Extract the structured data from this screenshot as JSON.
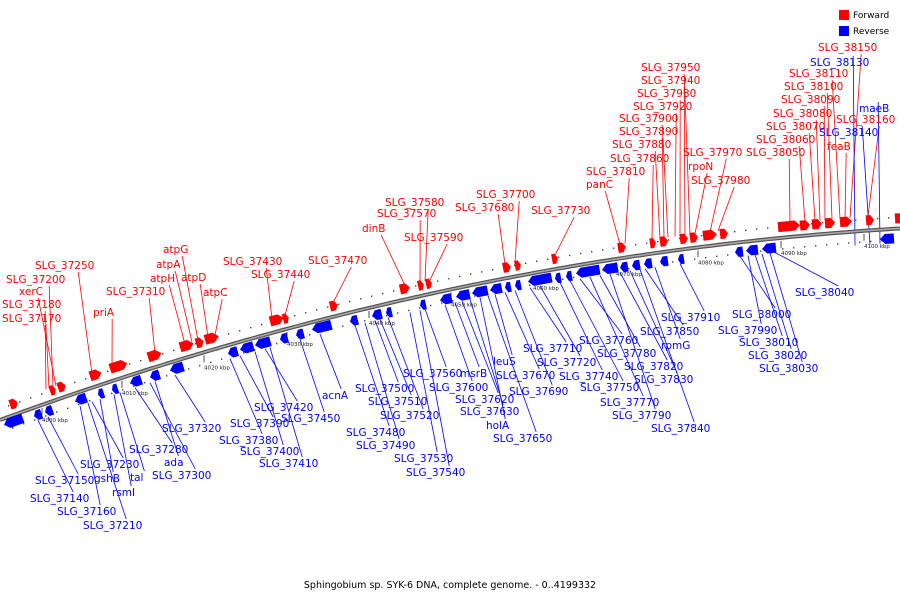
{
  "legend": {
    "forward": {
      "label": "Forward",
      "color": "#ff0000"
    },
    "reverse": {
      "label": "Reverse",
      "color": "#0000ff"
    }
  },
  "caption": "Sphingobium sp. SYK-6 DNA, complete genome. - 0..4199332",
  "ticks": [
    "4000 kbp",
    "4010 kbp",
    "4020 kbp",
    "4030 kbp",
    "4040 kbp",
    "4050 kbp",
    "4060 kbp",
    "4070 kbp",
    "4080 kbp",
    "4090 kbp",
    "4100 kbp"
  ],
  "forward_labels": [
    "SLG_37170",
    "SLG_37180",
    "SLG_37200",
    "xerC",
    "SLG_37250",
    "priA",
    "SLG_37310",
    "atpH",
    "atpA",
    "atpG",
    "atpD",
    "atpC",
    "SLG_37430",
    "SLG_37440",
    "SLG_37470",
    "dinB",
    "SLG_37570",
    "SLG_37580",
    "SLG_37590",
    "SLG_37680",
    "SLG_37700",
    "SLG_37730",
    "panC",
    "SLG_37810",
    "SLG_37860",
    "SLG_37880",
    "SLG_37890",
    "SLG_37900",
    "SLG_37920",
    "SLG_37930",
    "SLG_37940",
    "SLG_37950",
    "rpoN",
    "SLG_37970",
    "SLG_37980",
    "SLG_38050",
    "SLG_38060",
    "SLG_38070",
    "SLG_38080",
    "SLG_38090",
    "SLG_38100",
    "SLG_38110",
    "SLG_38150",
    "feaB",
    "SLG_38160"
  ],
  "reverse_labels": [
    "SLG_37140",
    "SLG_37150",
    "SLG_37160",
    "SLG_37210",
    "gshB",
    "SLG_37230",
    "rsmI",
    "tal",
    "SLG_37280",
    "ada",
    "SLG_37300",
    "SLG_37320",
    "SLG_37380",
    "SLG_37390",
    "SLG_37400",
    "SLG_37410",
    "SLG_37420",
    "SLG_37450",
    "acnA",
    "SLG_37480",
    "SLG_37490",
    "SLG_37500",
    "SLG_37510",
    "SLG_37520",
    "SLG_37530",
    "SLG_37540",
    "SLG_37560",
    "SLG_37600",
    "msrB",
    "SLG_37620",
    "SLG_37630",
    "holA",
    "SLG_37650",
    "leuS",
    "SLG_37670",
    "SLG_37690",
    "SLG_37710",
    "SLG_37720",
    "SLG_37740",
    "SLG_37750",
    "SLG_37760",
    "SLG_37770",
    "SLG_37780",
    "SLG_37790",
    "SLG_37820",
    "SLG_37830",
    "SLG_37840",
    "SLG_37850",
    "rpmG",
    "SLG_37910",
    "SLG_38000",
    "SLG_37990",
    "SLG_38010",
    "SLG_38020",
    "SLG_38030",
    "SLG_38040",
    "SLG_38130",
    "maeB",
    "SLG_38140"
  ]
}
